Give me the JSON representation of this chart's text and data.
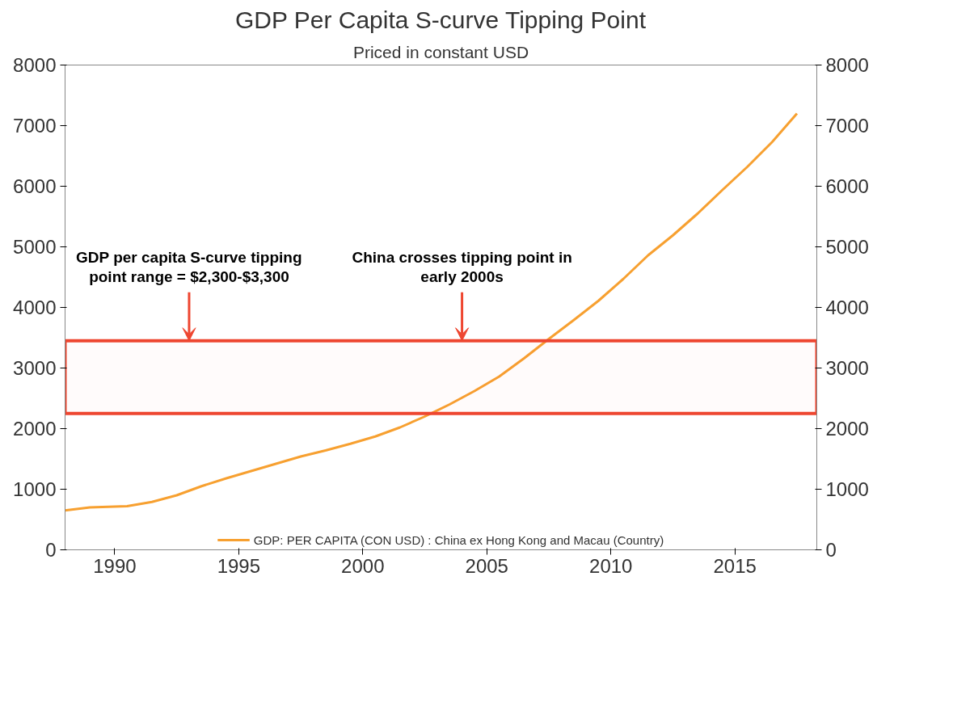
{
  "chart_data": {
    "type": "line",
    "title": "GDP Per Capita S-curve Tipping Point",
    "subtitle": "Priced in constant USD",
    "x": [
      1988,
      1989,
      1990.5,
      1991.5,
      1992.5,
      1993.5,
      1994.5,
      1995.5,
      1996.5,
      1997.5,
      1998.5,
      1999.5,
      2000.5,
      2001.5,
      2002.5,
      2003.5,
      2004.5,
      2005.5,
      2006.5,
      2007.5,
      2008.5,
      2009.5,
      2010.5,
      2011.5,
      2012.5,
      2013.5,
      2014.5,
      2015.5,
      2016.5,
      2017.5
    ],
    "series": [
      {
        "name": "GDP: PER CAPITA (CON USD) : China ex Hong Kong and Macau (Country)",
        "color": "#f7a030",
        "values": [
          650,
          700,
          720,
          790,
          900,
          1050,
          1180,
          1300,
          1420,
          1540,
          1640,
          1750,
          1870,
          2020,
          2200,
          2400,
          2620,
          2860,
          3160,
          3480,
          3790,
          4110,
          4470,
          4860,
          5190,
          5550,
          5940,
          6320,
          6730,
          7200
        ]
      }
    ],
    "xlim": [
      1988,
      2018.3
    ],
    "xticks": [
      1990,
      1995,
      2000,
      2005,
      2010,
      2015
    ],
    "ylim": [
      0,
      8000
    ],
    "yticks": [
      0,
      1000,
      2000,
      3000,
      4000,
      5000,
      6000,
      7000,
      8000
    ],
    "y2lim": [
      0,
      8000
    ],
    "y2ticks": [
      0,
      1000,
      2000,
      3000,
      4000,
      5000,
      6000,
      7000,
      8000
    ],
    "bands": [
      {
        "axis": "y",
        "from": 2250,
        "to": 3450,
        "color": "#ee4630"
      }
    ],
    "annotations": [
      {
        "text": "GDP per capita S-curve tipping\npoint range = $2,300-$3,300",
        "x": 1993,
        "y": 3450
      },
      {
        "text": "China crosses tipping point in\nearly 2000s",
        "x": 2004,
        "y": 3450
      }
    ],
    "grid": false,
    "legend": "bottom",
    "line_style": "solid",
    "marker": "none"
  }
}
